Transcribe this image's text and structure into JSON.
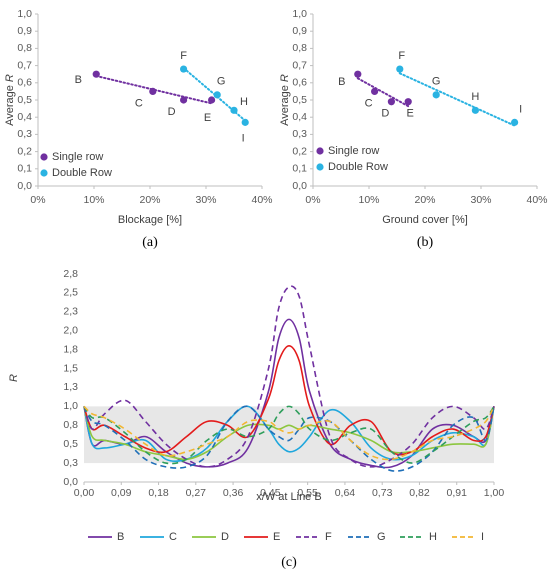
{
  "chart_data": [
    {
      "type": "scatter",
      "ylabel": "Average",
      "ylabel_symbol": "R",
      "xlabel": "Blockage [%]",
      "caption": "(a)",
      "xlim": [
        0,
        40
      ],
      "xticks": [
        {
          "value": 0,
          "label": "0%"
        },
        {
          "value": 10,
          "label": "10%"
        },
        {
          "value": 20,
          "label": "20%"
        },
        {
          "value": 30,
          "label": "30%"
        },
        {
          "value": 40,
          "label": "40%"
        }
      ],
      "ylim": [
        0,
        1
      ],
      "yticks": [
        {
          "value": 0,
          "label": "0,0"
        },
        {
          "value": 0.1,
          "label": "0,1"
        },
        {
          "value": 0.2,
          "label": "0,2"
        },
        {
          "value": 0.3,
          "label": "0,3"
        },
        {
          "value": 0.4,
          "label": "0,4"
        },
        {
          "value": 0.5,
          "label": "0,5"
        },
        {
          "value": 0.6,
          "label": "0,6"
        },
        {
          "value": 0.7,
          "label": "0,7"
        },
        {
          "value": 0.8,
          "label": "0,8"
        },
        {
          "value": 0.9,
          "label": "0,9"
        },
        {
          "value": 1,
          "label": "1,0"
        }
      ],
      "trendline": true,
      "legend": "lower left",
      "series": [
        {
          "name": "Single row",
          "color": "#7030a0",
          "point_labels": [
            "B",
            "C",
            "D",
            "E"
          ],
          "x": [
            10.4,
            20.5,
            26,
            31
          ],
          "values": [
            0.65,
            0.55,
            0.5,
            0.5
          ]
        },
        {
          "name": "Double Row",
          "color": "#2ab3e2",
          "point_labels": [
            "F",
            "G",
            "H",
            "I"
          ],
          "x": [
            26,
            32,
            35,
            37
          ],
          "values": [
            0.68,
            0.53,
            0.44,
            0.37
          ]
        }
      ]
    },
    {
      "type": "scatter",
      "ylabel": "Average",
      "ylabel_symbol": "R",
      "xlabel": "Ground cover [%]",
      "caption": "(b)",
      "xlim": [
        0,
        40
      ],
      "xticks": [
        {
          "value": 0,
          "label": "0%"
        },
        {
          "value": 10,
          "label": "10%"
        },
        {
          "value": 20,
          "label": "20%"
        },
        {
          "value": 30,
          "label": "30%"
        },
        {
          "value": 40,
          "label": "40%"
        }
      ],
      "ylim": [
        0,
        1
      ],
      "yticks": [
        {
          "value": 0,
          "label": "0,0"
        },
        {
          "value": 0.1,
          "label": "0,1"
        },
        {
          "value": 0.2,
          "label": "0,2"
        },
        {
          "value": 0.3,
          "label": "0,3"
        },
        {
          "value": 0.4,
          "label": "0,4"
        },
        {
          "value": 0.5,
          "label": "0,5"
        },
        {
          "value": 0.6,
          "label": "0,6"
        },
        {
          "value": 0.7,
          "label": "0,7"
        },
        {
          "value": 0.8,
          "label": "0,8"
        },
        {
          "value": 0.9,
          "label": "0,9"
        },
        {
          "value": 1,
          "label": "1,0"
        }
      ],
      "trendline": true,
      "legend": "lower left",
      "series": [
        {
          "name": "Single row",
          "color": "#7030a0",
          "point_labels": [
            "B",
            "C",
            "D",
            "E"
          ],
          "x": [
            8,
            11,
            14,
            17
          ],
          "values": [
            0.65,
            0.55,
            0.49,
            0.49
          ]
        },
        {
          "name": "Double Row",
          "color": "#2ab3e2",
          "point_labels": [
            "F",
            "G",
            "H",
            "I"
          ],
          "x": [
            15.5,
            22,
            29,
            36
          ],
          "values": [
            0.68,
            0.53,
            0.44,
            0.37
          ]
        }
      ]
    },
    {
      "type": "line",
      "ylabel_symbol": "R",
      "xlabel": "x/W at Line B",
      "caption": "(c)",
      "xlim": [
        0,
        1
      ],
      "xticks": [
        {
          "value": 0,
          "label": "0,00"
        },
        {
          "value": 0.0909,
          "label": "0,09"
        },
        {
          "value": 0.1818,
          "label": "0,18"
        },
        {
          "value": 0.2727,
          "label": "0,27"
        },
        {
          "value": 0.3636,
          "label": "0,36"
        },
        {
          "value": 0.4545,
          "label": "0,45"
        },
        {
          "value": 0.5455,
          "label": "0,55"
        },
        {
          "value": 0.6364,
          "label": "0,64"
        },
        {
          "value": 0.7273,
          "label": "0,73"
        },
        {
          "value": 0.8182,
          "label": "0,82"
        },
        {
          "value": 0.9091,
          "label": "0,91"
        },
        {
          "value": 1,
          "label": "1,00"
        }
      ],
      "ylim": [
        0,
        2.75
      ],
      "yticks": [
        {
          "value": 0,
          "label": "0,0"
        },
        {
          "value": 0.25,
          "label": "0,3"
        },
        {
          "value": 0.5,
          "label": "0,5"
        },
        {
          "value": 0.75,
          "label": "0,8"
        },
        {
          "value": 1,
          "label": "1,0"
        },
        {
          "value": 1.25,
          "label": "1,3"
        },
        {
          "value": 1.5,
          "label": "1,5"
        },
        {
          "value": 1.75,
          "label": "1,8"
        },
        {
          "value": 2,
          "label": "2,0"
        },
        {
          "value": 2.25,
          "label": "2,3"
        },
        {
          "value": 2.5,
          "label": "2,5"
        },
        {
          "value": 2.75,
          "label": "2,8"
        }
      ],
      "band": [
        0.25,
        1.0
      ],
      "band_color": "#e7e7e7",
      "legend": "bottom",
      "x": [
        0,
        0.02,
        0.05,
        0.1,
        0.15,
        0.2,
        0.25,
        0.3,
        0.35,
        0.4,
        0.45,
        0.475,
        0.5,
        0.525,
        0.55,
        0.6,
        0.65,
        0.7,
        0.75,
        0.8,
        0.85,
        0.9,
        0.95,
        0.98,
        1
      ],
      "series": [
        {
          "name": "B",
          "color": "#7030a0",
          "dash": false,
          "values": [
            1.0,
            0.5,
            0.55,
            0.5,
            0.6,
            0.4,
            0.25,
            0.2,
            0.25,
            0.45,
            1.2,
            1.9,
            2.15,
            1.9,
            1.2,
            0.5,
            0.3,
            0.22,
            0.2,
            0.35,
            0.7,
            0.75,
            0.6,
            0.55,
            1.0
          ]
        },
        {
          "name": "C",
          "color": "#1fa7dd",
          "dash": false,
          "values": [
            1.0,
            0.5,
            0.45,
            0.5,
            0.55,
            0.3,
            0.3,
            0.45,
            0.8,
            1.0,
            0.7,
            0.5,
            0.4,
            0.45,
            0.6,
            0.95,
            0.8,
            0.45,
            0.3,
            0.35,
            0.55,
            0.65,
            0.6,
            0.5,
            1.0
          ]
        },
        {
          "name": "D",
          "color": "#8cc63f",
          "dash": false,
          "values": [
            1.0,
            0.6,
            0.55,
            0.5,
            0.4,
            0.35,
            0.3,
            0.4,
            0.6,
            0.75,
            0.75,
            0.7,
            0.75,
            0.7,
            0.75,
            0.7,
            0.65,
            0.55,
            0.4,
            0.4,
            0.45,
            0.5,
            0.5,
            0.5,
            1.0
          ]
        },
        {
          "name": "E",
          "color": "#e31b1b",
          "dash": false,
          "values": [
            1.0,
            0.7,
            0.75,
            0.6,
            0.45,
            0.4,
            0.6,
            0.8,
            0.75,
            0.6,
            1.1,
            1.6,
            1.8,
            1.6,
            1.0,
            0.5,
            0.75,
            0.8,
            0.4,
            0.4,
            0.6,
            0.7,
            0.55,
            0.6,
            1.0
          ]
        },
        {
          "name": "F",
          "color": "#7030a0",
          "dash": true,
          "values": [
            1.0,
            0.7,
            0.9,
            1.08,
            0.8,
            0.5,
            0.3,
            0.2,
            0.3,
            0.6,
            1.5,
            2.3,
            2.58,
            2.45,
            1.8,
            0.6,
            0.3,
            0.2,
            0.3,
            0.5,
            0.85,
            1.0,
            0.85,
            0.7,
            1.0
          ]
        },
        {
          "name": "G",
          "color": "#1f6fb8",
          "dash": true,
          "values": [
            1.0,
            0.8,
            0.75,
            0.55,
            0.3,
            0.2,
            0.2,
            0.35,
            0.8,
            1.0,
            0.7,
            0.6,
            0.55,
            0.7,
            0.85,
            0.8,
            0.55,
            0.3,
            0.15,
            0.2,
            0.4,
            0.75,
            0.85,
            0.55,
            1.0
          ]
        },
        {
          "name": "H",
          "color": "#2e9e5b",
          "dash": true,
          "values": [
            1.0,
            0.85,
            0.85,
            0.65,
            0.4,
            0.25,
            0.3,
            0.55,
            0.7,
            0.6,
            0.7,
            0.9,
            1.0,
            0.9,
            0.7,
            0.55,
            0.65,
            0.7,
            0.4,
            0.25,
            0.4,
            0.6,
            0.8,
            0.85,
            1.0
          ]
        },
        {
          "name": "I",
          "color": "#f2b632",
          "dash": true,
          "values": [
            1.0,
            0.9,
            0.85,
            0.7,
            0.5,
            0.35,
            0.4,
            0.5,
            0.6,
            0.8,
            0.8,
            0.7,
            0.65,
            0.7,
            0.75,
            0.8,
            0.55,
            0.35,
            0.3,
            0.4,
            0.55,
            0.6,
            0.7,
            0.8,
            1.0
          ]
        }
      ]
    }
  ]
}
